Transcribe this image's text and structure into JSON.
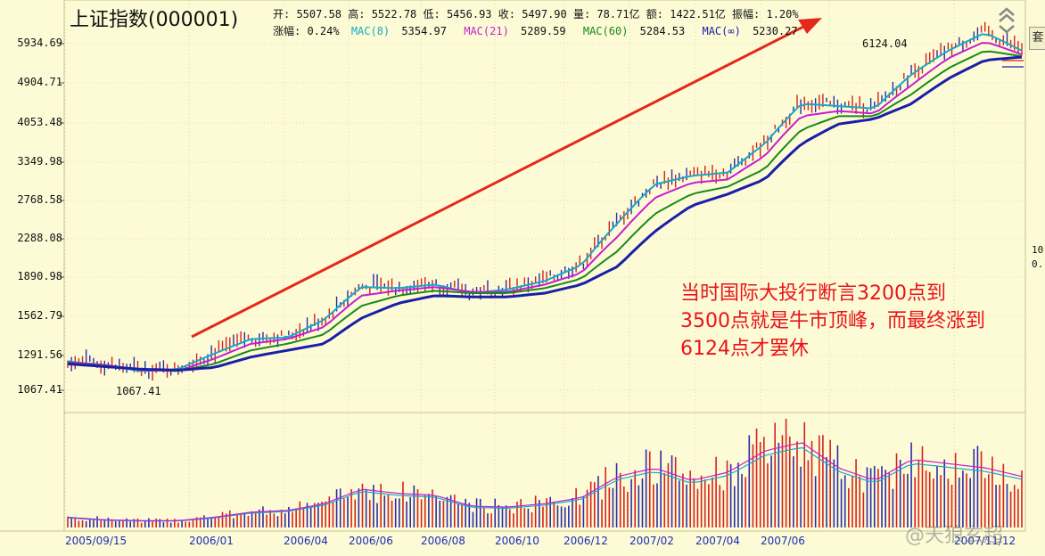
{
  "header": {
    "title": "上证指数(000001)",
    "line1": "开: 5507.58 高: 5522.78 低: 5456.93 收: 5497.90 量: 78.71亿 额: 1422.51亿 振幅: 1.20%",
    "change": "涨幅: 0.24%",
    "ma": [
      {
        "label": "MAC(8)",
        "value": "5354.97",
        "color": "#16a9c7"
      },
      {
        "label": "MAC(21)",
        "value": "5289.59",
        "color": "#c21fd0"
      },
      {
        "label": "MAC(60)",
        "value": "5284.53",
        "color": "#188a1a"
      },
      {
        "label": "MAC(∞)",
        "value": "5230.27",
        "color": "#1a1fa8"
      }
    ]
  },
  "annotation": [
    "当时国际大投行断言3200点到",
    "3500点就是牛市顶峰，而最终涨到",
    "6124点才罢休"
  ],
  "right_panel": {
    "tab": "套",
    "mark1": "10",
    "mark2": "0."
  },
  "watermark": "@天狼玄超",
  "colors": {
    "background": "#fdfbd6",
    "up": "#d8201c",
    "down": "#2c2ca8",
    "arrow": "#e4281c",
    "grid": "#c9c38a",
    "axis_text": "#1a2db8"
  },
  "chart_data": {
    "type": "line",
    "title": "上证指数(000001)",
    "scale": "log",
    "y_ticks": [
      "5934.69",
      "4904.71",
      "4053.48",
      "3349.98",
      "2768.58",
      "2288.08",
      "1890.98",
      "1562.79",
      "1291.56",
      "1067.41"
    ],
    "x_ticks": [
      "2005/09/15",
      "2006/01",
      "2006/04",
      "2006/06",
      "2006/08",
      "2006/10",
      "2006/12",
      "2007/02",
      "2007/04",
      "2007/06",
      "2007/11/12"
    ],
    "low_label": "1067.41",
    "high_label": "6124.04",
    "ylim": [
      1000,
      6300
    ],
    "series": [
      {
        "name": "MAC(8)",
        "color": "#16a9c7",
        "x": [
          "2005/09",
          "2005/10",
          "2005/11",
          "2005/12",
          "2006/01",
          "2006/02",
          "2006/03",
          "2006/04",
          "2006/05",
          "2006/06",
          "2006/07",
          "2006/08",
          "2006/09",
          "2006/10",
          "2006/11",
          "2006/12",
          "2007/01",
          "2007/02",
          "2007/03",
          "2007/04",
          "2007/05",
          "2007/06",
          "2007/07",
          "2007/08",
          "2007/09",
          "2007/10",
          "2007/11"
        ],
        "values": [
          1155,
          1130,
          1100,
          1110,
          1200,
          1290,
          1300,
          1420,
          1670,
          1660,
          1690,
          1620,
          1650,
          1720,
          1860,
          2300,
          2780,
          2900,
          2950,
          3400,
          4150,
          4100,
          4050,
          4800,
          5400,
          5900,
          5400
        ]
      },
      {
        "name": "MAC(21)",
        "color": "#c21fd0",
        "x": [
          "2005/09",
          "2005/10",
          "2005/11",
          "2005/12",
          "2006/01",
          "2006/02",
          "2006/03",
          "2006/04",
          "2006/05",
          "2006/06",
          "2006/07",
          "2006/08",
          "2006/09",
          "2006/10",
          "2006/11",
          "2006/12",
          "2007/01",
          "2007/02",
          "2007/03",
          "2007/04",
          "2007/05",
          "2007/06",
          "2007/07",
          "2007/08",
          "2007/09",
          "2007/10",
          "2007/11"
        ],
        "values": [
          1150,
          1135,
          1105,
          1100,
          1170,
          1260,
          1290,
          1370,
          1600,
          1640,
          1670,
          1630,
          1630,
          1690,
          1790,
          2150,
          2600,
          2800,
          2850,
          3200,
          3900,
          4000,
          3950,
          4550,
          5200,
          5650,
          5300
        ]
      },
      {
        "name": "MAC(60)",
        "color": "#188a1a",
        "x": [
          "2005/09",
          "2005/10",
          "2005/11",
          "2005/12",
          "2006/01",
          "2006/02",
          "2006/03",
          "2006/04",
          "2006/05",
          "2006/06",
          "2006/07",
          "2006/08",
          "2006/09",
          "2006/10",
          "2006/11",
          "2006/12",
          "2007/01",
          "2007/02",
          "2007/03",
          "2007/04",
          "2007/05",
          "2007/06",
          "2007/07",
          "2007/08",
          "2007/09",
          "2007/10",
          "2007/11"
        ],
        "values": [
          1145,
          1130,
          1110,
          1100,
          1140,
          1220,
          1260,
          1320,
          1520,
          1600,
          1640,
          1620,
          1620,
          1660,
          1740,
          2000,
          2400,
          2650,
          2750,
          3000,
          3650,
          3900,
          3900,
          4350,
          4950,
          5400,
          5250
        ]
      },
      {
        "name": "MAC(∞)",
        "color": "#1a1fa8",
        "x": [
          "2005/09",
          "2005/10",
          "2005/11",
          "2005/12",
          "2006/01",
          "2006/02",
          "2006/03",
          "2006/04",
          "2006/05",
          "2006/06",
          "2006/07",
          "2006/08",
          "2006/09",
          "2006/10",
          "2006/11",
          "2006/12",
          "2007/01",
          "2007/02",
          "2007/03",
          "2007/04",
          "2007/05",
          "2007/06",
          "2007/07",
          "2007/08",
          "2007/09",
          "2007/10",
          "2007/11"
        ],
        "values": [
          1140,
          1125,
          1110,
          1105,
          1120,
          1180,
          1220,
          1260,
          1430,
          1540,
          1600,
          1590,
          1590,
          1620,
          1690,
          1850,
          2200,
          2500,
          2650,
          2850,
          3400,
          3750,
          3850,
          4150,
          4700,
          5150,
          5230
        ]
      }
    ],
    "volume": {
      "x": [
        "2005/09",
        "2005/10",
        "2005/11",
        "2005/12",
        "2006/01",
        "2006/02",
        "2006/03",
        "2006/04",
        "2006/05",
        "2006/06",
        "2006/07",
        "2006/08",
        "2006/09",
        "2006/10",
        "2006/11",
        "2006/12",
        "2007/01",
        "2007/02",
        "2007/03",
        "2007/04",
        "2007/05",
        "2007/06",
        "2007/07",
        "2007/08",
        "2007/09",
        "2007/10",
        "2007/11"
      ],
      "values": [
        12,
        9,
        8,
        8,
        12,
        18,
        20,
        28,
        45,
        40,
        38,
        25,
        24,
        28,
        35,
        60,
        70,
        55,
        65,
        90,
        100,
        70,
        55,
        80,
        75,
        70,
        60
      ]
    }
  }
}
